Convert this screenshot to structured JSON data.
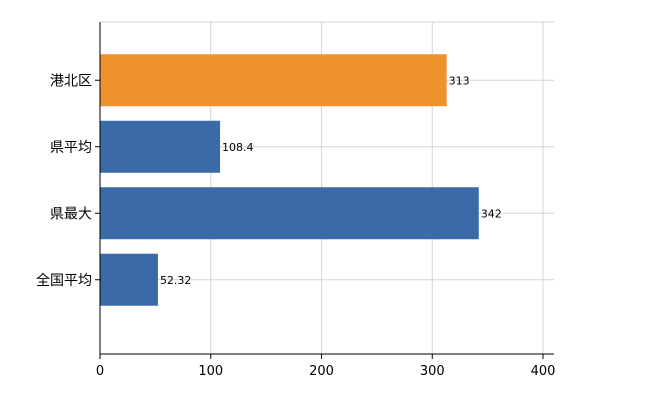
{
  "chart_data": {
    "type": "bar",
    "orientation": "horizontal",
    "title": "",
    "xlabel": "",
    "ylabel": "",
    "categories": [
      "港北区",
      "県平均",
      "県最大",
      "全国平均"
    ],
    "values": [
      313,
      108.4,
      342,
      52.32
    ],
    "data_labels": [
      "313",
      "108.4",
      "342",
      "52.32"
    ],
    "bar_colors": [
      "#f0922c",
      "#3a6aa8",
      "#3a6aa8",
      "#3a6aa8"
    ],
    "xlim": [
      0,
      400
    ],
    "xticks": [
      0,
      100,
      200,
      300,
      400
    ],
    "grid": true,
    "legend": "none"
  }
}
